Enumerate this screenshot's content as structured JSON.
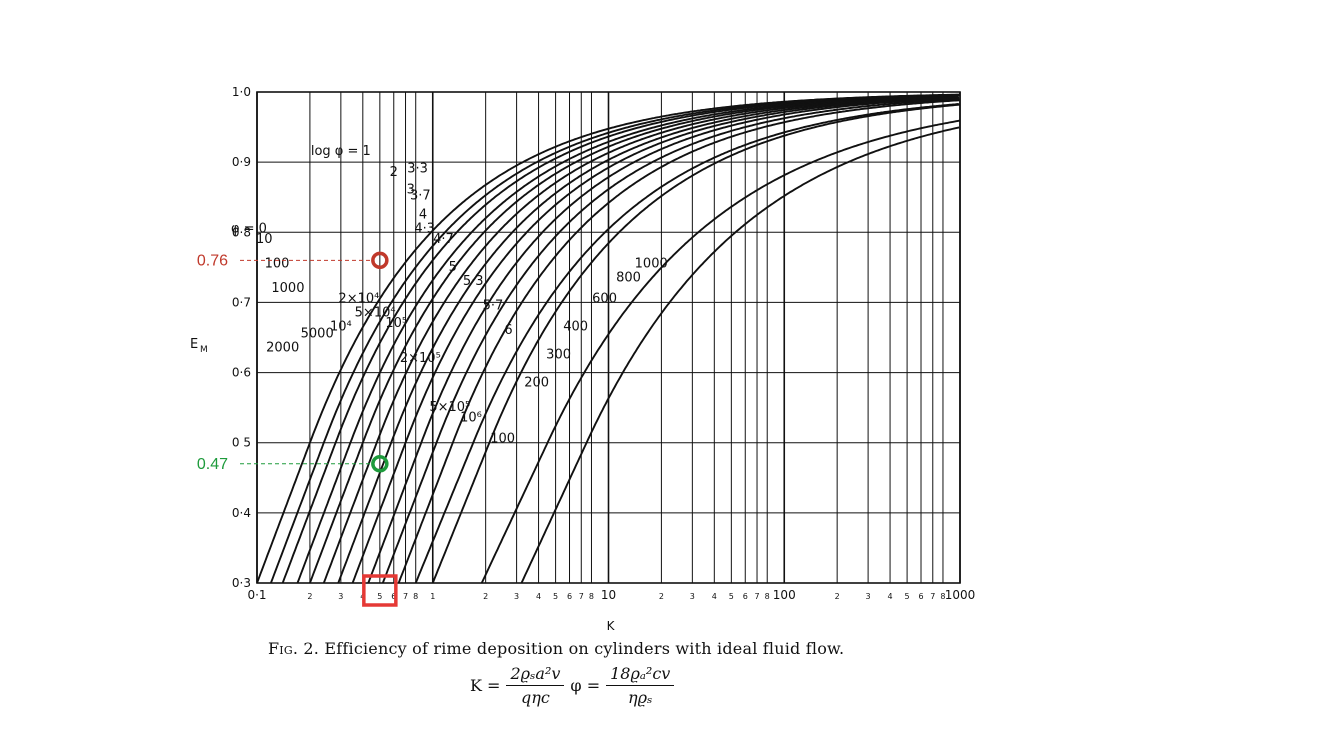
{
  "chart_data": {
    "type": "line",
    "xlabel": "K",
    "ylabel": "E",
    "ylabel_sub": "M",
    "x_scale": "log",
    "xlim": [
      0.1,
      1000
    ],
    "ylim": [
      0.3,
      1.0
    ],
    "grid": true,
    "x_ticks": [
      {
        "v": 0.1,
        "label": "0·1"
      },
      {
        "v": 0.2,
        "label": "2"
      },
      {
        "v": 0.3,
        "label": "3"
      },
      {
        "v": 0.4,
        "label": "4"
      },
      {
        "v": 0.5,
        "label": "5"
      },
      {
        "v": 0.6,
        "label": "6"
      },
      {
        "v": 0.7,
        "label": "7"
      },
      {
        "v": 0.8,
        "label": "8"
      },
      {
        "v": 1,
        "label": "1"
      },
      {
        "v": 2,
        "label": "2"
      },
      {
        "v": 3,
        "label": "3"
      },
      {
        "v": 4,
        "label": "4"
      },
      {
        "v": 5,
        "label": "5"
      },
      {
        "v": 6,
        "label": "6"
      },
      {
        "v": 7,
        "label": "7"
      },
      {
        "v": 8,
        "label": "8"
      },
      {
        "v": 10,
        "label": "10"
      },
      {
        "v": 20,
        "label": "2"
      },
      {
        "v": 30,
        "label": "3"
      },
      {
        "v": 40,
        "label": "4"
      },
      {
        "v": 50,
        "label": "5"
      },
      {
        "v": 60,
        "label": "6"
      },
      {
        "v": 70,
        "label": "7"
      },
      {
        "v": 80,
        "label": "8"
      },
      {
        "v": 100,
        "label": "100"
      },
      {
        "v": 200,
        "label": "2"
      },
      {
        "v": 300,
        "label": "3"
      },
      {
        "v": 400,
        "label": "4"
      },
      {
        "v": 500,
        "label": "5"
      },
      {
        "v": 600,
        "label": "6"
      },
      {
        "v": 700,
        "label": "7"
      },
      {
        "v": 800,
        "label": "8"
      },
      {
        "v": 1000,
        "label": "1000"
      }
    ],
    "y_ticks": [
      {
        "v": 0.3,
        "label": "0·3"
      },
      {
        "v": 0.4,
        "label": "0·4"
      },
      {
        "v": 0.5,
        "label": "0 5"
      },
      {
        "v": 0.6,
        "label": "0·6"
      },
      {
        "v": 0.7,
        "label": "0·7"
      },
      {
        "v": 0.8,
        "label": "0·8"
      },
      {
        "v": 0.9,
        "label": "0·9"
      },
      {
        "v": 1.0,
        "label": "1·0"
      }
    ],
    "curves": [
      {
        "name": "0",
        "k_at_03": 0.1,
        "k_at_05": 0.2
      },
      {
        "name": "10",
        "k_at_03": 0.12,
        "k_at_05": 0.24
      },
      {
        "name": "100",
        "k_at_03": 0.14,
        "k_at_05": 0.28
      },
      {
        "name": "1000",
        "k_at_03": 0.17,
        "k_at_05": 0.34
      },
      {
        "name": "2000",
        "k_at_03": 0.2,
        "k_at_05": 0.4
      },
      {
        "name": "5000",
        "k_at_03": 0.24,
        "k_at_05": 0.48
      },
      {
        "name": "10⁴",
        "k_at_03": 0.29,
        "k_at_05": 0.58
      },
      {
        "name": "2×10⁴",
        "k_at_03": 0.35,
        "k_at_05": 0.7
      },
      {
        "name": "5×10⁴",
        "k_at_03": 0.43,
        "k_at_05": 0.86
      },
      {
        "name": "10⁵",
        "k_at_03": 0.52,
        "k_at_05": 1.05
      },
      {
        "name": "2×10⁵",
        "k_at_03": 0.64,
        "k_at_05": 1.3
      },
      {
        "name": "5×10⁵",
        "k_at_03": 0.8,
        "k_at_05": 1.7
      },
      {
        "name": "10⁶",
        "k_at_03": 1.0,
        "k_at_05": 2.1
      },
      {
        "name": "5·7",
        "k_at_03": 1.9,
        "k_at_05": 4.5
      },
      {
        "name": "6",
        "k_at_03": 3.2,
        "k_at_05": 7.5
      }
    ],
    "curve_labels": [
      {
        "text": "log φ = 1",
        "x": 0.3,
        "y": 0.91
      },
      {
        "text": "2",
        "x": 0.6,
        "y": 0.88
      },
      {
        "text": "3",
        "x": 0.75,
        "y": 0.855
      },
      {
        "text": "3·3",
        "x": 0.82,
        "y": 0.885
      },
      {
        "text": "3·7",
        "x": 0.85,
        "y": 0.847
      },
      {
        "text": "4",
        "x": 0.88,
        "y": 0.82
      },
      {
        "text": "4·3",
        "x": 0.9,
        "y": 0.8
      },
      {
        "text": "4·7",
        "x": 1.15,
        "y": 0.785
      },
      {
        "text": "5",
        "x": 1.3,
        "y": 0.745
      },
      {
        "text": "5·3",
        "x": 1.7,
        "y": 0.725
      },
      {
        "text": "5·7",
        "x": 2.2,
        "y": 0.69
      },
      {
        "text": "6",
        "x": 2.7,
        "y": 0.655
      },
      {
        "text": "φ = 0",
        "x": 0.09,
        "y": 0.8
      },
      {
        "text": "10",
        "x": 0.11,
        "y": 0.785
      },
      {
        "text": "100",
        "x": 0.13,
        "y": 0.75
      },
      {
        "text": "1000",
        "x": 0.15,
        "y": 0.715
      },
      {
        "text": "2000",
        "x": 0.14,
        "y": 0.63
      },
      {
        "text": "5000",
        "x": 0.22,
        "y": 0.65
      },
      {
        "text": "10⁴",
        "x": 0.3,
        "y": 0.66
      },
      {
        "text": "2×10⁴",
        "x": 0.38,
        "y": 0.7
      },
      {
        "text": "5×10⁴",
        "x": 0.47,
        "y": 0.68
      },
      {
        "text": "10⁵",
        "x": 0.62,
        "y": 0.665
      },
      {
        "text": "2×10⁵",
        "x": 0.85,
        "y": 0.615
      },
      {
        "text": "5×10⁵",
        "x": 1.25,
        "y": 0.545
      },
      {
        "text": "10⁶",
        "x": 1.65,
        "y": 0.53
      },
      {
        "text": "100",
        "x": 2.5,
        "y": 0.5
      },
      {
        "text": "200",
        "x": 3.9,
        "y": 0.58
      },
      {
        "text": "300",
        "x": 5.2,
        "y": 0.62
      },
      {
        "text": "400",
        "x": 6.5,
        "y": 0.66
      },
      {
        "text": "600",
        "x": 9.5,
        "y": 0.7
      },
      {
        "text": "800",
        "x": 13,
        "y": 0.73
      },
      {
        "text": "1000",
        "x": 17.5,
        "y": 0.75
      }
    ],
    "annotations": [
      {
        "label": "0.76",
        "x": 0.5,
        "y": 0.76,
        "color": "#c0392b"
      },
      {
        "label": "0.47",
        "x": 0.5,
        "y": 0.47,
        "color": "#1e9b3c"
      }
    ],
    "highlight_tick": {
      "x": 0.5,
      "color": "#e53935"
    }
  },
  "caption": {
    "fig": "Fig. 2.",
    "text": "Efficiency of rime deposition on cylinders with ideal fluid flow."
  },
  "formula": {
    "lhs1": "K =",
    "num1": "2ϱₛa²v",
    "den1": "qηc",
    "lhs2": "φ =",
    "num2": "18ϱₐ²cv",
    "den2": "ηϱₛ"
  }
}
